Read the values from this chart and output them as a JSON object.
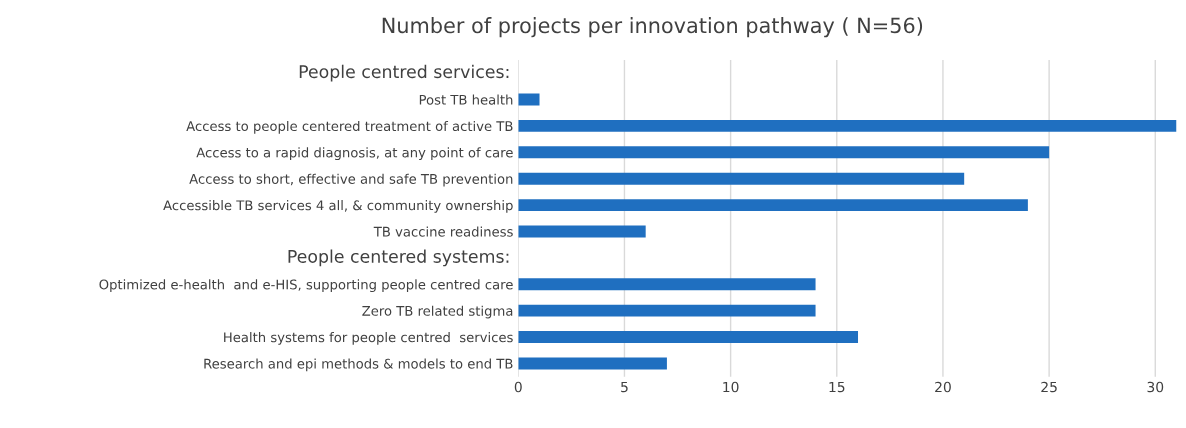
{
  "chart_data": {
    "type": "bar",
    "orientation": "horizontal",
    "title": "Number of projects per innovation pathway ( N=56)",
    "annotations": [
      "People centred services:",
      "People centered systems:"
    ],
    "categories": [
      null,
      "Post TB health",
      "Access to people centered treatment of active TB",
      "Access to a rapid diagnosis, at any point of care",
      "Access to short, effective and safe TB prevention",
      "Accessible TB services 4 all, & community ownership",
      "TB vaccine readiness",
      null,
      "Optimized e-health  and e-HIS, supporting people centred care",
      "Zero TB related stigma",
      "Health systems for people centred  services",
      "Research and epi methods & models to end TB"
    ],
    "values": [
      null,
      1,
      31,
      25,
      21,
      24,
      6,
      null,
      14,
      14,
      16,
      7
    ],
    "color": "#1f6fc0",
    "xlim": [
      0,
      31
    ],
    "xticks": [
      0,
      5,
      10,
      15,
      20,
      25,
      30
    ],
    "grid": "x"
  }
}
